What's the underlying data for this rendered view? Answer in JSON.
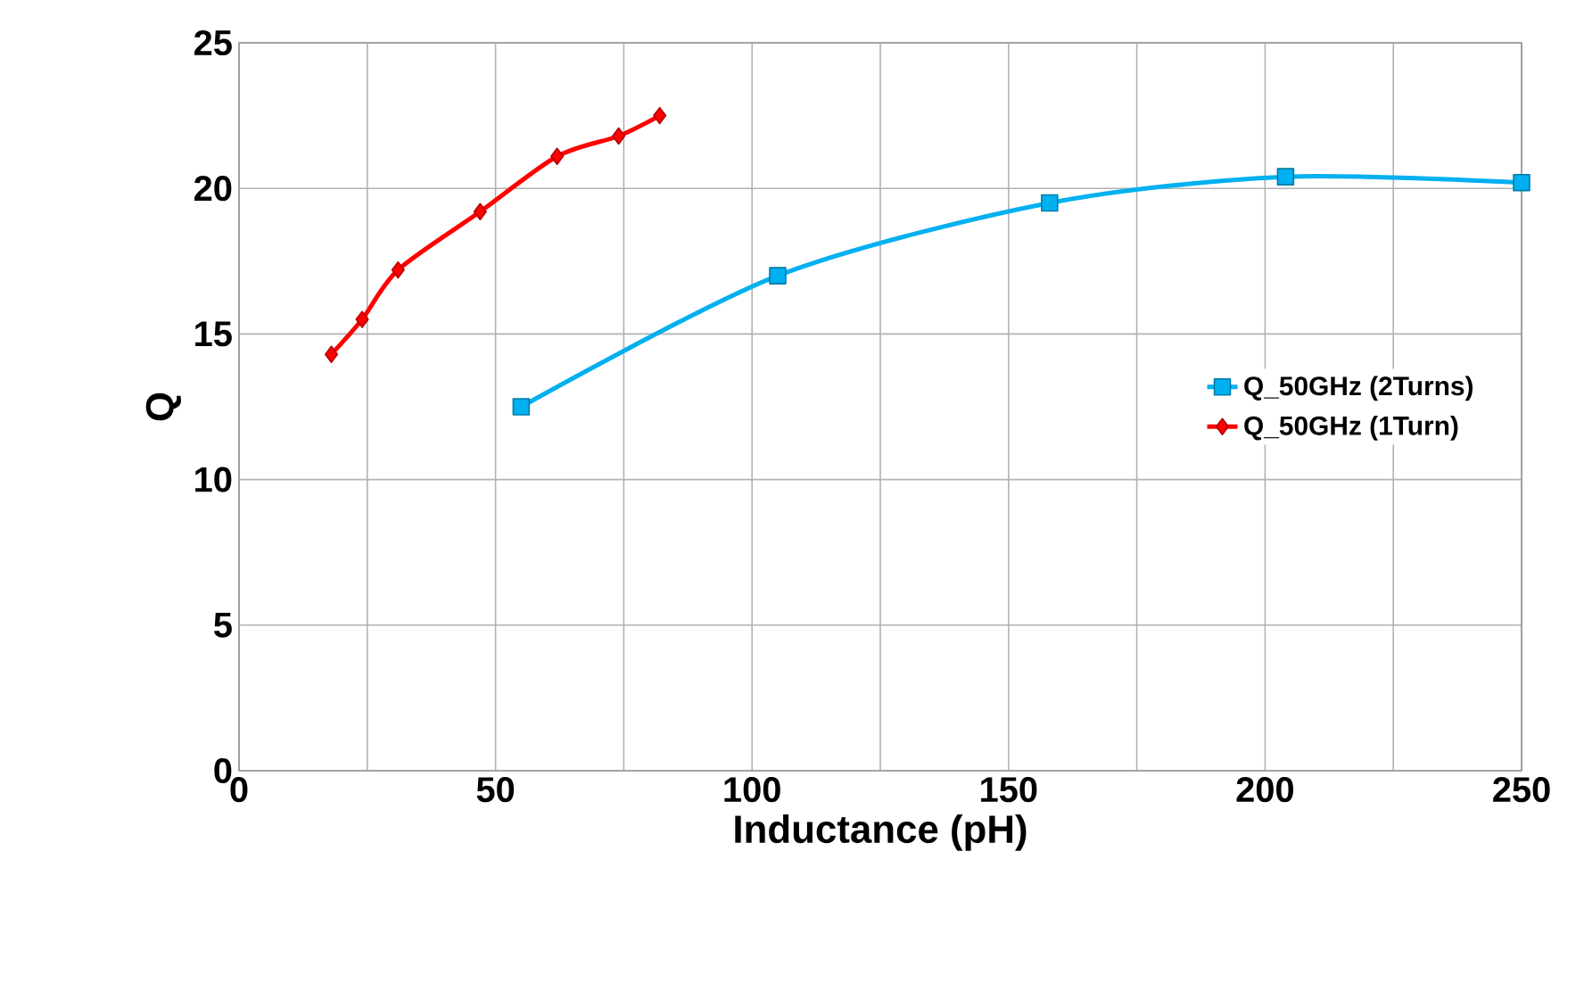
{
  "chart_data": {
    "type": "line",
    "xlabel": "Inductance (pH)",
    "ylabel": "Q",
    "xlim": [
      0,
      250
    ],
    "xticks": [
      0,
      {
        "value": 25,
        "label": null
      },
      50,
      {
        "value": 75,
        "label": null
      },
      100,
      {
        "value": 125,
        "label": null
      },
      150,
      {
        "value": 175,
        "label": null
      },
      200,
      {
        "value": 225,
        "label": null
      },
      250
    ],
    "ylim": [
      0,
      25
    ],
    "yticks": [
      0,
      5,
      10,
      15,
      20,
      25
    ],
    "grid": true,
    "legend": "right",
    "line_style": "solid",
    "series": [
      {
        "name": "Q_50GHz (2Turns)",
        "color": "#00b0f0",
        "marker": "square",
        "x": [
          55,
          105,
          158,
          204,
          250
        ],
        "values": [
          12.5,
          17.0,
          19.5,
          20.4,
          20.2
        ]
      },
      {
        "name": "Q_50GHz (1Turn)",
        "color": "#ff0000",
        "marker": "diamond",
        "x": [
          18,
          24,
          31,
          47,
          62,
          74,
          82
        ],
        "values": [
          14.3,
          15.5,
          17.2,
          19.2,
          21.1,
          21.8,
          22.5
        ]
      }
    ]
  }
}
